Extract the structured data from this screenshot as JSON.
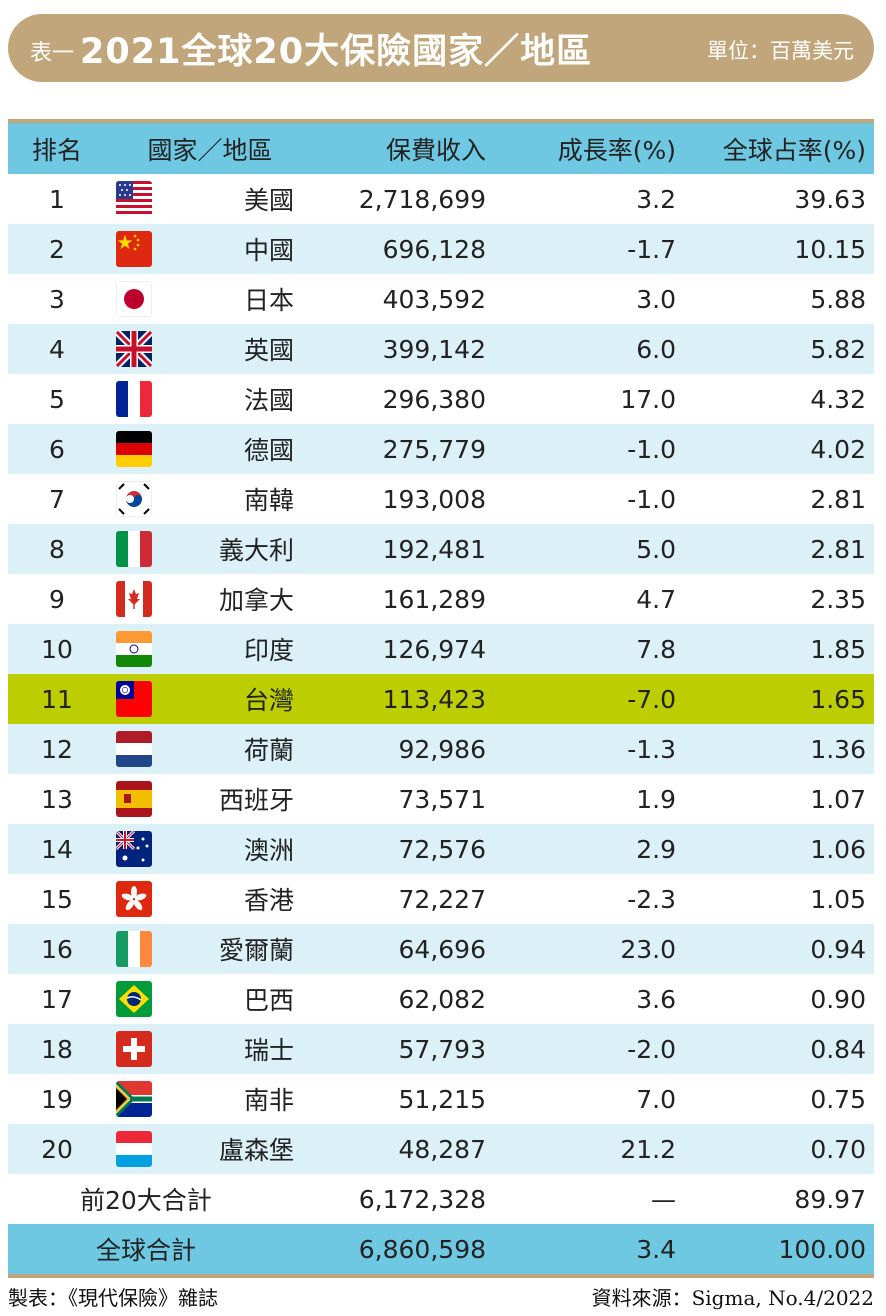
{
  "title": {
    "prefix": "表一",
    "main": "2021全球20大保險國家／地區",
    "unit": "單位：百萬美元"
  },
  "headers": {
    "rank": "排名",
    "country": "國家／地區",
    "premium": "保費收入",
    "growth": "成長率(%)",
    "share": "全球占率(%)"
  },
  "rows": [
    {
      "rank": "1",
      "flag": "usa-flag-icon",
      "country": "美國",
      "premium": "2,718,699",
      "growth": "3.2",
      "share": "39.63"
    },
    {
      "rank": "2",
      "flag": "china-flag-icon",
      "country": "中國",
      "premium": "696,128",
      "growth": "-1.7",
      "share": "10.15"
    },
    {
      "rank": "3",
      "flag": "japan-flag-icon",
      "country": "日本",
      "premium": "403,592",
      "growth": "3.0",
      "share": "5.88"
    },
    {
      "rank": "4",
      "flag": "uk-flag-icon",
      "country": "英國",
      "premium": "399,142",
      "growth": "6.0",
      "share": "5.82"
    },
    {
      "rank": "5",
      "flag": "france-flag-icon",
      "country": "法國",
      "premium": "296,380",
      "growth": "17.0",
      "share": "4.32"
    },
    {
      "rank": "6",
      "flag": "germany-flag-icon",
      "country": "德國",
      "premium": "275,779",
      "growth": "-1.0",
      "share": "4.02"
    },
    {
      "rank": "7",
      "flag": "south-korea-flag-icon",
      "country": "南韓",
      "premium": "193,008",
      "growth": "-1.0",
      "share": "2.81"
    },
    {
      "rank": "8",
      "flag": "italy-flag-icon",
      "country": "義大利",
      "premium": "192,481",
      "growth": "5.0",
      "share": "2.81"
    },
    {
      "rank": "9",
      "flag": "canada-flag-icon",
      "country": "加拿大",
      "premium": "161,289",
      "growth": "4.7",
      "share": "2.35"
    },
    {
      "rank": "10",
      "flag": "india-flag-icon",
      "country": "印度",
      "premium": "126,974",
      "growth": "7.8",
      "share": "1.85"
    },
    {
      "rank": "11",
      "flag": "taiwan-flag-icon",
      "country": "台灣",
      "premium": "113,423",
      "growth": "-7.0",
      "share": "1.65"
    },
    {
      "rank": "12",
      "flag": "netherlands-flag-icon",
      "country": "荷蘭",
      "premium": "92,986",
      "growth": "-1.3",
      "share": "1.36"
    },
    {
      "rank": "13",
      "flag": "spain-flag-icon",
      "country": "西班牙",
      "premium": "73,571",
      "growth": "1.9",
      "share": "1.07"
    },
    {
      "rank": "14",
      "flag": "australia-flag-icon",
      "country": "澳洲",
      "premium": "72,576",
      "growth": "2.9",
      "share": "1.06"
    },
    {
      "rank": "15",
      "flag": "hong-kong-flag-icon",
      "country": "香港",
      "premium": "72,227",
      "growth": "-2.3",
      "share": "1.05"
    },
    {
      "rank": "16",
      "flag": "ireland-flag-icon",
      "country": "愛爾蘭",
      "premium": "64,696",
      "growth": "23.0",
      "share": "0.94"
    },
    {
      "rank": "17",
      "flag": "brazil-flag-icon",
      "country": "巴西",
      "premium": "62,082",
      "growth": "3.6",
      "share": "0.90"
    },
    {
      "rank": "18",
      "flag": "switzerland-flag-icon",
      "country": "瑞士",
      "premium": "57,793",
      "growth": "-2.0",
      "share": "0.84"
    },
    {
      "rank": "19",
      "flag": "south-africa-flag-icon",
      "country": "南非",
      "premium": "51,215",
      "growth": "7.0",
      "share": "0.75"
    },
    {
      "rank": "20",
      "flag": "luxembourg-flag-icon",
      "country": "盧森堡",
      "premium": "48,287",
      "growth": "21.2",
      "share": "0.70"
    }
  ],
  "subtotal": {
    "label": "前20大合計",
    "premium": "6,172,328",
    "growth": "—",
    "share": "89.97"
  },
  "total": {
    "label": "全球合計",
    "premium": "6,860,598",
    "growth": "3.4",
    "share": "100.00"
  },
  "footer": {
    "left": "製表：《現代保險》雜誌",
    "right": "資料來源：Sigma, No.4/2022"
  },
  "colors": {
    "title_bg": "#c0a67a",
    "header_bg": "#6fc8e2",
    "shade_bg": "#dcf0f7",
    "highlight_bg": "#bccd00"
  }
}
